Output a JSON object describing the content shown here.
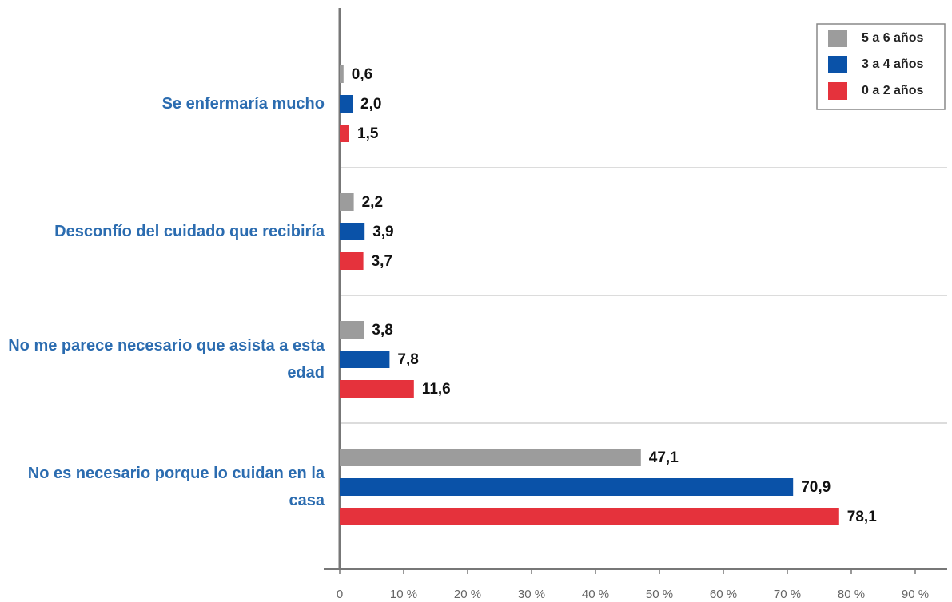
{
  "chart_data": {
    "type": "hbar",
    "categories": [
      "Se enfermaría mucho",
      "Desconfío del cuidado que recibiría",
      "No me parece necesario que asista a esta edad",
      "No es necesario porque lo cuidan en la casa"
    ],
    "series": [
      {
        "name": "5 a 6 años",
        "color": "#9c9c9c",
        "values": [
          0.6,
          2.2,
          3.8,
          47.1
        ],
        "value_labels": [
          "0,6",
          "2,2",
          "3,8",
          "47,1"
        ]
      },
      {
        "name": "3 a 4 años",
        "color": "#0a52a8",
        "values": [
          2.0,
          3.9,
          7.8,
          70.9
        ],
        "value_labels": [
          "2,0",
          "3,9",
          "7,8",
          "70,9"
        ]
      },
      {
        "name": "0 a 2 años",
        "color": "#e5323c",
        "values": [
          1.5,
          3.7,
          11.6,
          78.1
        ],
        "value_labels": [
          "1,5",
          "3,7",
          "11,6",
          "78,1"
        ]
      }
    ],
    "xlim": [
      0,
      95
    ],
    "xticks": [
      0,
      {
        "value": 10,
        "label": "10 %"
      },
      {
        "value": 20,
        "label": "20 %"
      },
      {
        "value": 30,
        "label": "30 %"
      },
      {
        "value": 40,
        "label": "40 %"
      },
      {
        "value": 50,
        "label": "50 %"
      },
      {
        "value": 60,
        "label": "60 %"
      },
      {
        "value": 70,
        "label": "70 %"
      },
      {
        "value": 80,
        "label": "80 %"
      },
      {
        "value": 90,
        "label": "90 %"
      }
    ],
    "legend": "top-right"
  }
}
